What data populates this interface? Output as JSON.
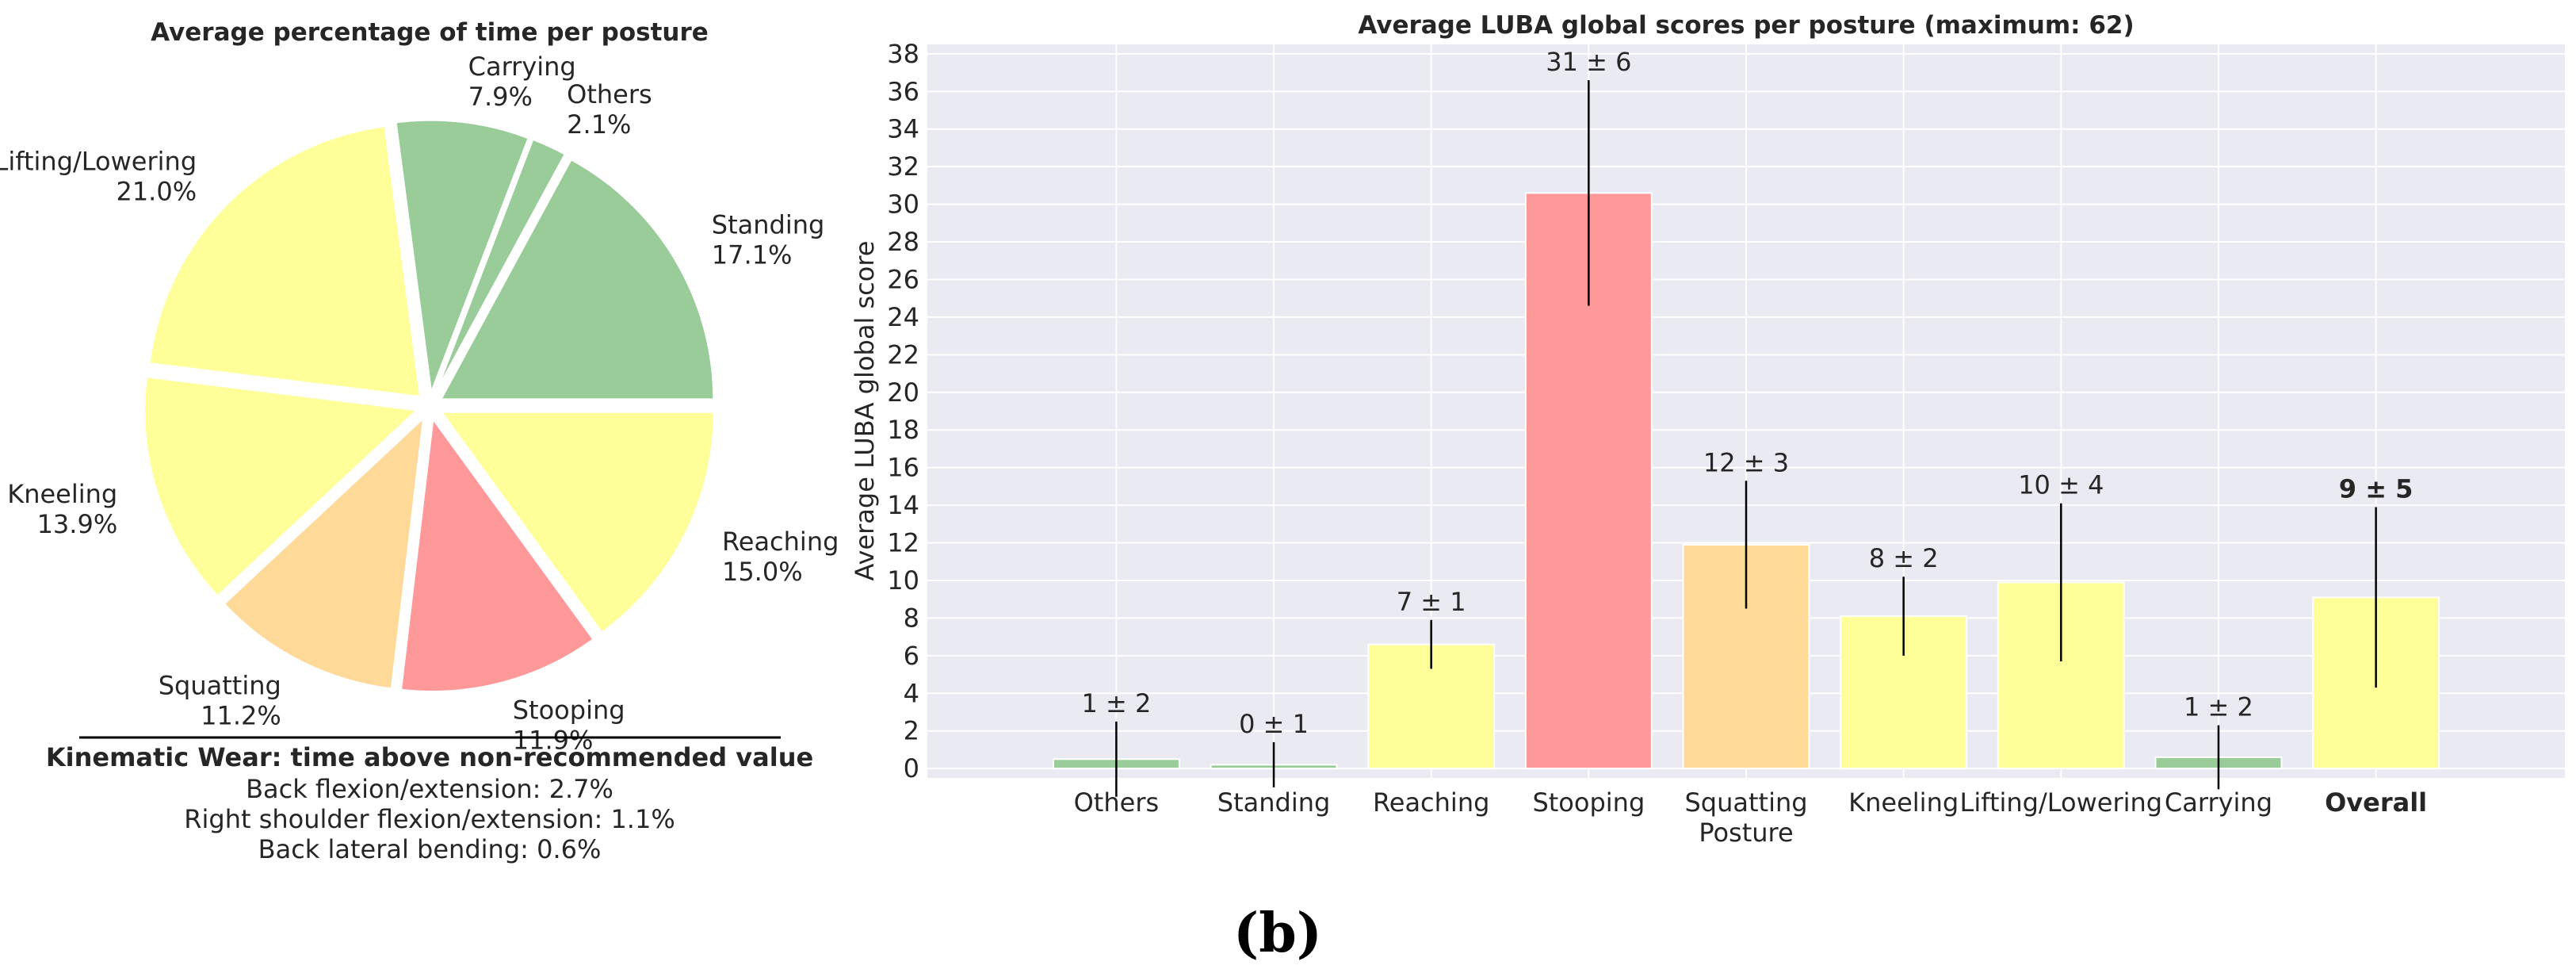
{
  "colors": {
    "green": "#99cc99",
    "yellow": "#ffff99",
    "red": "#ff9999",
    "orange": "#ffd998",
    "plot_bg": "#eaeaf2",
    "grid": "#ffffff",
    "error_bar": "#000000"
  },
  "kinematic": {
    "title": "Kinematic Wear: time above non-recommended value",
    "lines": [
      "Back flexion/extension: 2.7%",
      "Right shoulder flexion/extension: 1.1%",
      "Back lateral bending: 0.6%"
    ]
  },
  "caption": "(b)",
  "chart_data": [
    {
      "type": "pie",
      "title": "Average percentage of time per posture",
      "slices": [
        {
          "label": "Standing",
          "value": 17.1,
          "text": "17.1%",
          "color": "green"
        },
        {
          "label": "Others",
          "value": 2.1,
          "text": "2.1%",
          "color": "green"
        },
        {
          "label": "Carrying",
          "value": 7.9,
          "text": "7.9%",
          "color": "green"
        },
        {
          "label": "Lifting/Lowering",
          "value": 21.0,
          "text": "21.0%",
          "color": "yellow"
        },
        {
          "label": "Kneeling",
          "value": 13.9,
          "text": "13.9%",
          "color": "yellow"
        },
        {
          "label": "Squatting",
          "value": 11.2,
          "text": "11.2%",
          "color": "orange"
        },
        {
          "label": "Stooping",
          "value": 11.9,
          "text": "11.9%",
          "color": "red"
        },
        {
          "label": "Reaching",
          "value": 15.0,
          "text": "15.0%",
          "color": "yellow"
        }
      ]
    },
    {
      "type": "bar",
      "title": "Average LUBA global scores per posture (maximum: 62)",
      "ylabel": "Average LUBA global score",
      "xlabel": "",
      "ylim": [
        -0.5,
        38.5
      ],
      "yticks": [
        0,
        2,
        4,
        6,
        8,
        10,
        12,
        14,
        16,
        18,
        20,
        22,
        24,
        26,
        28,
        30,
        32,
        34,
        36,
        38
      ],
      "grid": true,
      "bars": [
        {
          "category": [
            "Others"
          ],
          "value": 0.5,
          "err": 2.0,
          "label": "1 ± 2",
          "color": "green",
          "bold": false
        },
        {
          "category": [
            "Standing"
          ],
          "value": 0.2,
          "err": 1.2,
          "label": "0 ± 1",
          "color": "green",
          "bold": false
        },
        {
          "category": [
            "Reaching"
          ],
          "value": 6.6,
          "err": 1.3,
          "label": "7 ± 1",
          "color": "yellow",
          "bold": false
        },
        {
          "category": [
            "Stooping"
          ],
          "value": 30.6,
          "err": 6.0,
          "label": "31 ± 6",
          "color": "red",
          "bold": false
        },
        {
          "category": [
            "Squatting",
            "Posture"
          ],
          "value": 11.9,
          "err": 3.4,
          "label": "12 ± 3",
          "color": "orange",
          "bold": false
        },
        {
          "category": [
            "Kneeling"
          ],
          "value": 8.1,
          "err": 2.1,
          "label": "8 ± 2",
          "color": "yellow",
          "bold": false
        },
        {
          "category": [
            "Lifting/Lowering"
          ],
          "value": 9.9,
          "err": 4.2,
          "label": "10 ± 4",
          "color": "yellow",
          "bold": false
        },
        {
          "category": [
            "Carrying"
          ],
          "value": 0.6,
          "err": 1.7,
          "label": "1 ± 2",
          "color": "green",
          "bold": false
        },
        {
          "category": [
            "Overall"
          ],
          "value": 9.1,
          "err": 4.8,
          "label": "9 ± 5",
          "color": "yellow",
          "bold": true
        }
      ]
    }
  ]
}
